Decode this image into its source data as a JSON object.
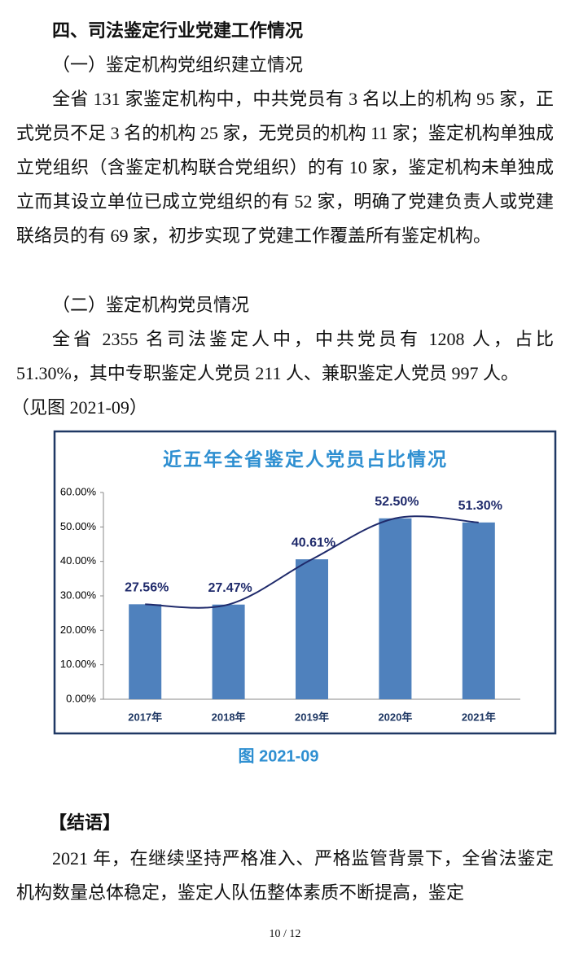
{
  "heading": "四、司法鉴定行业党建工作情况",
  "subsections": [
    {
      "title": "（一）鉴定机构党组织建立情况",
      "paragraph": "全省 131 家鉴定机构中，中共党员有 3 名以上的机构 95 家，正式党员不足 3 名的机构 25 家，无党员的机构 11 家；鉴定机构单独成立党组织（含鉴定机构联合党组织）的有 10 家，鉴定机构未单独成立而其设立单位已成立党组织的有 52 家，明确了党建负责人或党建联络员的有 69 家，初步实现了党建工作覆盖所有鉴定机构。"
    },
    {
      "title": "（二）鉴定机构党员情况",
      "paragraph": "全省 2355 名司法鉴定人中，中共党员有 1208 人，占比 51.30%，其中专职鉴定人党员 211 人、兼职鉴定人党员 997 人。",
      "note": "（见图 2021-09）"
    }
  ],
  "chart_data": {
    "type": "bar",
    "title": "近五年全省鉴定人党员占比情况",
    "categories": [
      "2017年",
      "2018年",
      "2019年",
      "2020年",
      "2021年"
    ],
    "values": [
      27.56,
      27.47,
      40.61,
      52.5,
      51.3
    ],
    "value_labels": [
      "27.56%",
      "27.47%",
      "40.61%",
      "52.50%",
      "51.30%"
    ],
    "color": "#4f81bd",
    "smooth_line": true,
    "line_color": "#1f2a6b",
    "ylim": [
      0,
      60
    ],
    "yticks": [
      {
        "value": 0,
        "label": "0.00%"
      },
      {
        "value": 10,
        "label": "10.00%"
      },
      {
        "value": 20,
        "label": "20.00%"
      },
      {
        "value": 30,
        "label": "30.00%"
      },
      {
        "value": 40,
        "label": "40.00%"
      },
      {
        "value": 50,
        "label": "50.00%"
      },
      {
        "value": 60,
        "label": "60.00%"
      }
    ],
    "grid": false
  },
  "caption": "图 2021-09",
  "conclusion": {
    "title": "【结语】",
    "paragraph": "2021 年，在继续坚持严格准入、严格监管背景下，全省法鉴定机构数量总体稳定，鉴定人队伍整体素质不断提高，鉴定"
  },
  "page_number": "10 / 12"
}
